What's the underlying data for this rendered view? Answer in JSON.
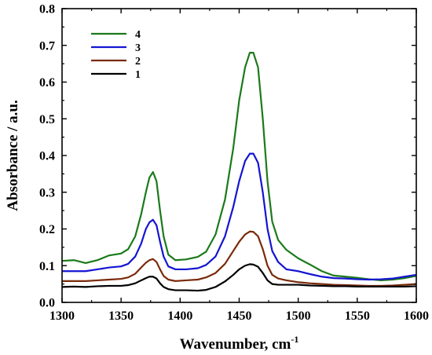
{
  "chart_data": {
    "type": "line",
    "xlabel": "Wavenumber, cm",
    "xlabel_superscript": "-1",
    "ylabel": "Absorbance / a.u.",
    "xlim": [
      1300,
      1600
    ],
    "ylim": [
      0.0,
      0.8
    ],
    "x_ticks": [
      "1300",
      "1350",
      "1400",
      "1450",
      "1500",
      "1550",
      "1600"
    ],
    "y_ticks": [
      "0.0",
      "0.1",
      "0.2",
      "0.3",
      "0.4",
      "0.5",
      "0.6",
      "0.7",
      "0.8"
    ],
    "grid": false,
    "legend_position": "top-left",
    "series": [
      {
        "name": "4",
        "color": "#1a7a1a",
        "points": [
          [
            1300,
            0.113
          ],
          [
            1310,
            0.115
          ],
          [
            1320,
            0.107
          ],
          [
            1330,
            0.115
          ],
          [
            1340,
            0.128
          ],
          [
            1350,
            0.133
          ],
          [
            1356,
            0.145
          ],
          [
            1362,
            0.18
          ],
          [
            1367,
            0.24
          ],
          [
            1371,
            0.3
          ],
          [
            1374,
            0.34
          ],
          [
            1377,
            0.355
          ],
          [
            1380,
            0.33
          ],
          [
            1383,
            0.25
          ],
          [
            1386,
            0.18
          ],
          [
            1390,
            0.13
          ],
          [
            1396,
            0.115
          ],
          [
            1405,
            0.117
          ],
          [
            1415,
            0.124
          ],
          [
            1422,
            0.138
          ],
          [
            1430,
            0.185
          ],
          [
            1438,
            0.28
          ],
          [
            1445,
            0.42
          ],
          [
            1450,
            0.55
          ],
          [
            1455,
            0.64
          ],
          [
            1459,
            0.68
          ],
          [
            1462,
            0.68
          ],
          [
            1466,
            0.64
          ],
          [
            1470,
            0.5
          ],
          [
            1474,
            0.33
          ],
          [
            1478,
            0.22
          ],
          [
            1483,
            0.17
          ],
          [
            1490,
            0.143
          ],
          [
            1500,
            0.12
          ],
          [
            1510,
            0.103
          ],
          [
            1520,
            0.085
          ],
          [
            1530,
            0.073
          ],
          [
            1540,
            0.07
          ],
          [
            1550,
            0.067
          ],
          [
            1560,
            0.063
          ],
          [
            1570,
            0.06
          ],
          [
            1580,
            0.062
          ],
          [
            1590,
            0.066
          ],
          [
            1600,
            0.072
          ]
        ]
      },
      {
        "name": "3",
        "color": "#1414d2",
        "points": [
          [
            1300,
            0.085
          ],
          [
            1310,
            0.085
          ],
          [
            1320,
            0.085
          ],
          [
            1330,
            0.09
          ],
          [
            1340,
            0.095
          ],
          [
            1350,
            0.098
          ],
          [
            1356,
            0.105
          ],
          [
            1362,
            0.125
          ],
          [
            1367,
            0.16
          ],
          [
            1371,
            0.2
          ],
          [
            1374,
            0.218
          ],
          [
            1377,
            0.225
          ],
          [
            1380,
            0.21
          ],
          [
            1383,
            0.165
          ],
          [
            1386,
            0.125
          ],
          [
            1390,
            0.098
          ],
          [
            1396,
            0.09
          ],
          [
            1405,
            0.09
          ],
          [
            1415,
            0.093
          ],
          [
            1422,
            0.102
          ],
          [
            1430,
            0.125
          ],
          [
            1438,
            0.18
          ],
          [
            1445,
            0.26
          ],
          [
            1450,
            0.33
          ],
          [
            1455,
            0.385
          ],
          [
            1459,
            0.405
          ],
          [
            1462,
            0.405
          ],
          [
            1466,
            0.38
          ],
          [
            1470,
            0.3
          ],
          [
            1474,
            0.2
          ],
          [
            1478,
            0.14
          ],
          [
            1483,
            0.11
          ],
          [
            1490,
            0.09
          ],
          [
            1500,
            0.085
          ],
          [
            1510,
            0.077
          ],
          [
            1520,
            0.07
          ],
          [
            1530,
            0.066
          ],
          [
            1540,
            0.065
          ],
          [
            1550,
            0.063
          ],
          [
            1560,
            0.062
          ],
          [
            1570,
            0.063
          ],
          [
            1580,
            0.065
          ],
          [
            1590,
            0.07
          ],
          [
            1600,
            0.075
          ]
        ]
      },
      {
        "name": "2",
        "color": "#7a2a0a",
        "points": [
          [
            1300,
            0.058
          ],
          [
            1310,
            0.058
          ],
          [
            1320,
            0.058
          ],
          [
            1330,
            0.06
          ],
          [
            1340,
            0.062
          ],
          [
            1350,
            0.064
          ],
          [
            1356,
            0.068
          ],
          [
            1362,
            0.078
          ],
          [
            1367,
            0.095
          ],
          [
            1371,
            0.108
          ],
          [
            1374,
            0.115
          ],
          [
            1377,
            0.118
          ],
          [
            1380,
            0.11
          ],
          [
            1383,
            0.09
          ],
          [
            1386,
            0.072
          ],
          [
            1390,
            0.062
          ],
          [
            1396,
            0.058
          ],
          [
            1405,
            0.06
          ],
          [
            1415,
            0.062
          ],
          [
            1422,
            0.068
          ],
          [
            1430,
            0.08
          ],
          [
            1438,
            0.105
          ],
          [
            1445,
            0.14
          ],
          [
            1450,
            0.165
          ],
          [
            1455,
            0.185
          ],
          [
            1459,
            0.193
          ],
          [
            1462,
            0.192
          ],
          [
            1466,
            0.18
          ],
          [
            1470,
            0.145
          ],
          [
            1474,
            0.1
          ],
          [
            1478,
            0.075
          ],
          [
            1483,
            0.065
          ],
          [
            1490,
            0.06
          ],
          [
            1500,
            0.055
          ],
          [
            1510,
            0.052
          ],
          [
            1520,
            0.05
          ],
          [
            1530,
            0.048
          ],
          [
            1540,
            0.047
          ],
          [
            1550,
            0.046
          ],
          [
            1560,
            0.045
          ],
          [
            1570,
            0.045
          ],
          [
            1580,
            0.046
          ],
          [
            1590,
            0.048
          ],
          [
            1600,
            0.05
          ]
        ]
      },
      {
        "name": "1",
        "color": "#000000",
        "points": [
          [
            1300,
            0.042
          ],
          [
            1310,
            0.043
          ],
          [
            1320,
            0.042
          ],
          [
            1330,
            0.044
          ],
          [
            1340,
            0.045
          ],
          [
            1350,
            0.045
          ],
          [
            1356,
            0.047
          ],
          [
            1362,
            0.052
          ],
          [
            1367,
            0.06
          ],
          [
            1371,
            0.066
          ],
          [
            1374,
            0.07
          ],
          [
            1377,
            0.07
          ],
          [
            1380,
            0.065
          ],
          [
            1383,
            0.052
          ],
          [
            1386,
            0.042
          ],
          [
            1390,
            0.036
          ],
          [
            1396,
            0.033
          ],
          [
            1405,
            0.033
          ],
          [
            1415,
            0.032
          ],
          [
            1422,
            0.034
          ],
          [
            1430,
            0.042
          ],
          [
            1438,
            0.057
          ],
          [
            1445,
            0.075
          ],
          [
            1450,
            0.09
          ],
          [
            1455,
            0.1
          ],
          [
            1459,
            0.104
          ],
          [
            1462,
            0.103
          ],
          [
            1466,
            0.097
          ],
          [
            1470,
            0.08
          ],
          [
            1474,
            0.06
          ],
          [
            1478,
            0.05
          ],
          [
            1483,
            0.048
          ],
          [
            1490,
            0.048
          ],
          [
            1500,
            0.048
          ],
          [
            1510,
            0.046
          ],
          [
            1520,
            0.045
          ],
          [
            1530,
            0.044
          ],
          [
            1540,
            0.044
          ],
          [
            1550,
            0.043
          ],
          [
            1560,
            0.043
          ],
          [
            1570,
            0.043
          ],
          [
            1580,
            0.043
          ],
          [
            1590,
            0.043
          ],
          [
            1600,
            0.044
          ]
        ]
      }
    ]
  }
}
